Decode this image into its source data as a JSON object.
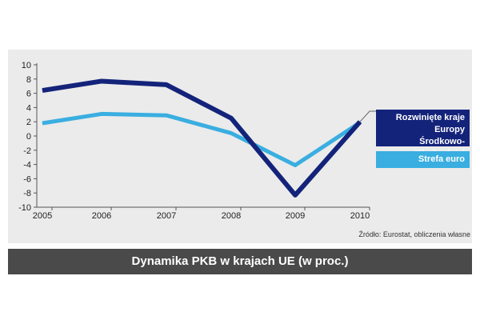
{
  "chart_data": {
    "type": "line",
    "title": "Dynamika PKB w krajach UE (w proc.)",
    "x": [
      "2005",
      "2006",
      "2007",
      "2008",
      "2009",
      "2010"
    ],
    "ylim": [
      -10,
      10
    ],
    "yticks": [
      10,
      8,
      6,
      4,
      2,
      0,
      -2,
      -4,
      -6,
      -8,
      -10
    ],
    "grid": false,
    "legend_position": "right",
    "series": [
      {
        "name": "Rozwinięte kraje Europy Środkowo-Wschodniej",
        "name_line1": "Rozwinięte kraje Europy",
        "name_line2": "Środkowo-Wschodniej",
        "values": [
          6.4,
          7.7,
          7.2,
          2.5,
          -8.3,
          2.0
        ],
        "color": "#14237a"
      },
      {
        "name": "Strefa euro",
        "values": [
          1.8,
          3.1,
          2.9,
          0.4,
          -4.1,
          1.9
        ],
        "color": "#3aaee0"
      }
    ]
  },
  "source": "Źródło: Eurostat, obliczenia własne",
  "colors": {
    "panel": "#ebebeb",
    "title_bar": "#4a4a4a"
  }
}
